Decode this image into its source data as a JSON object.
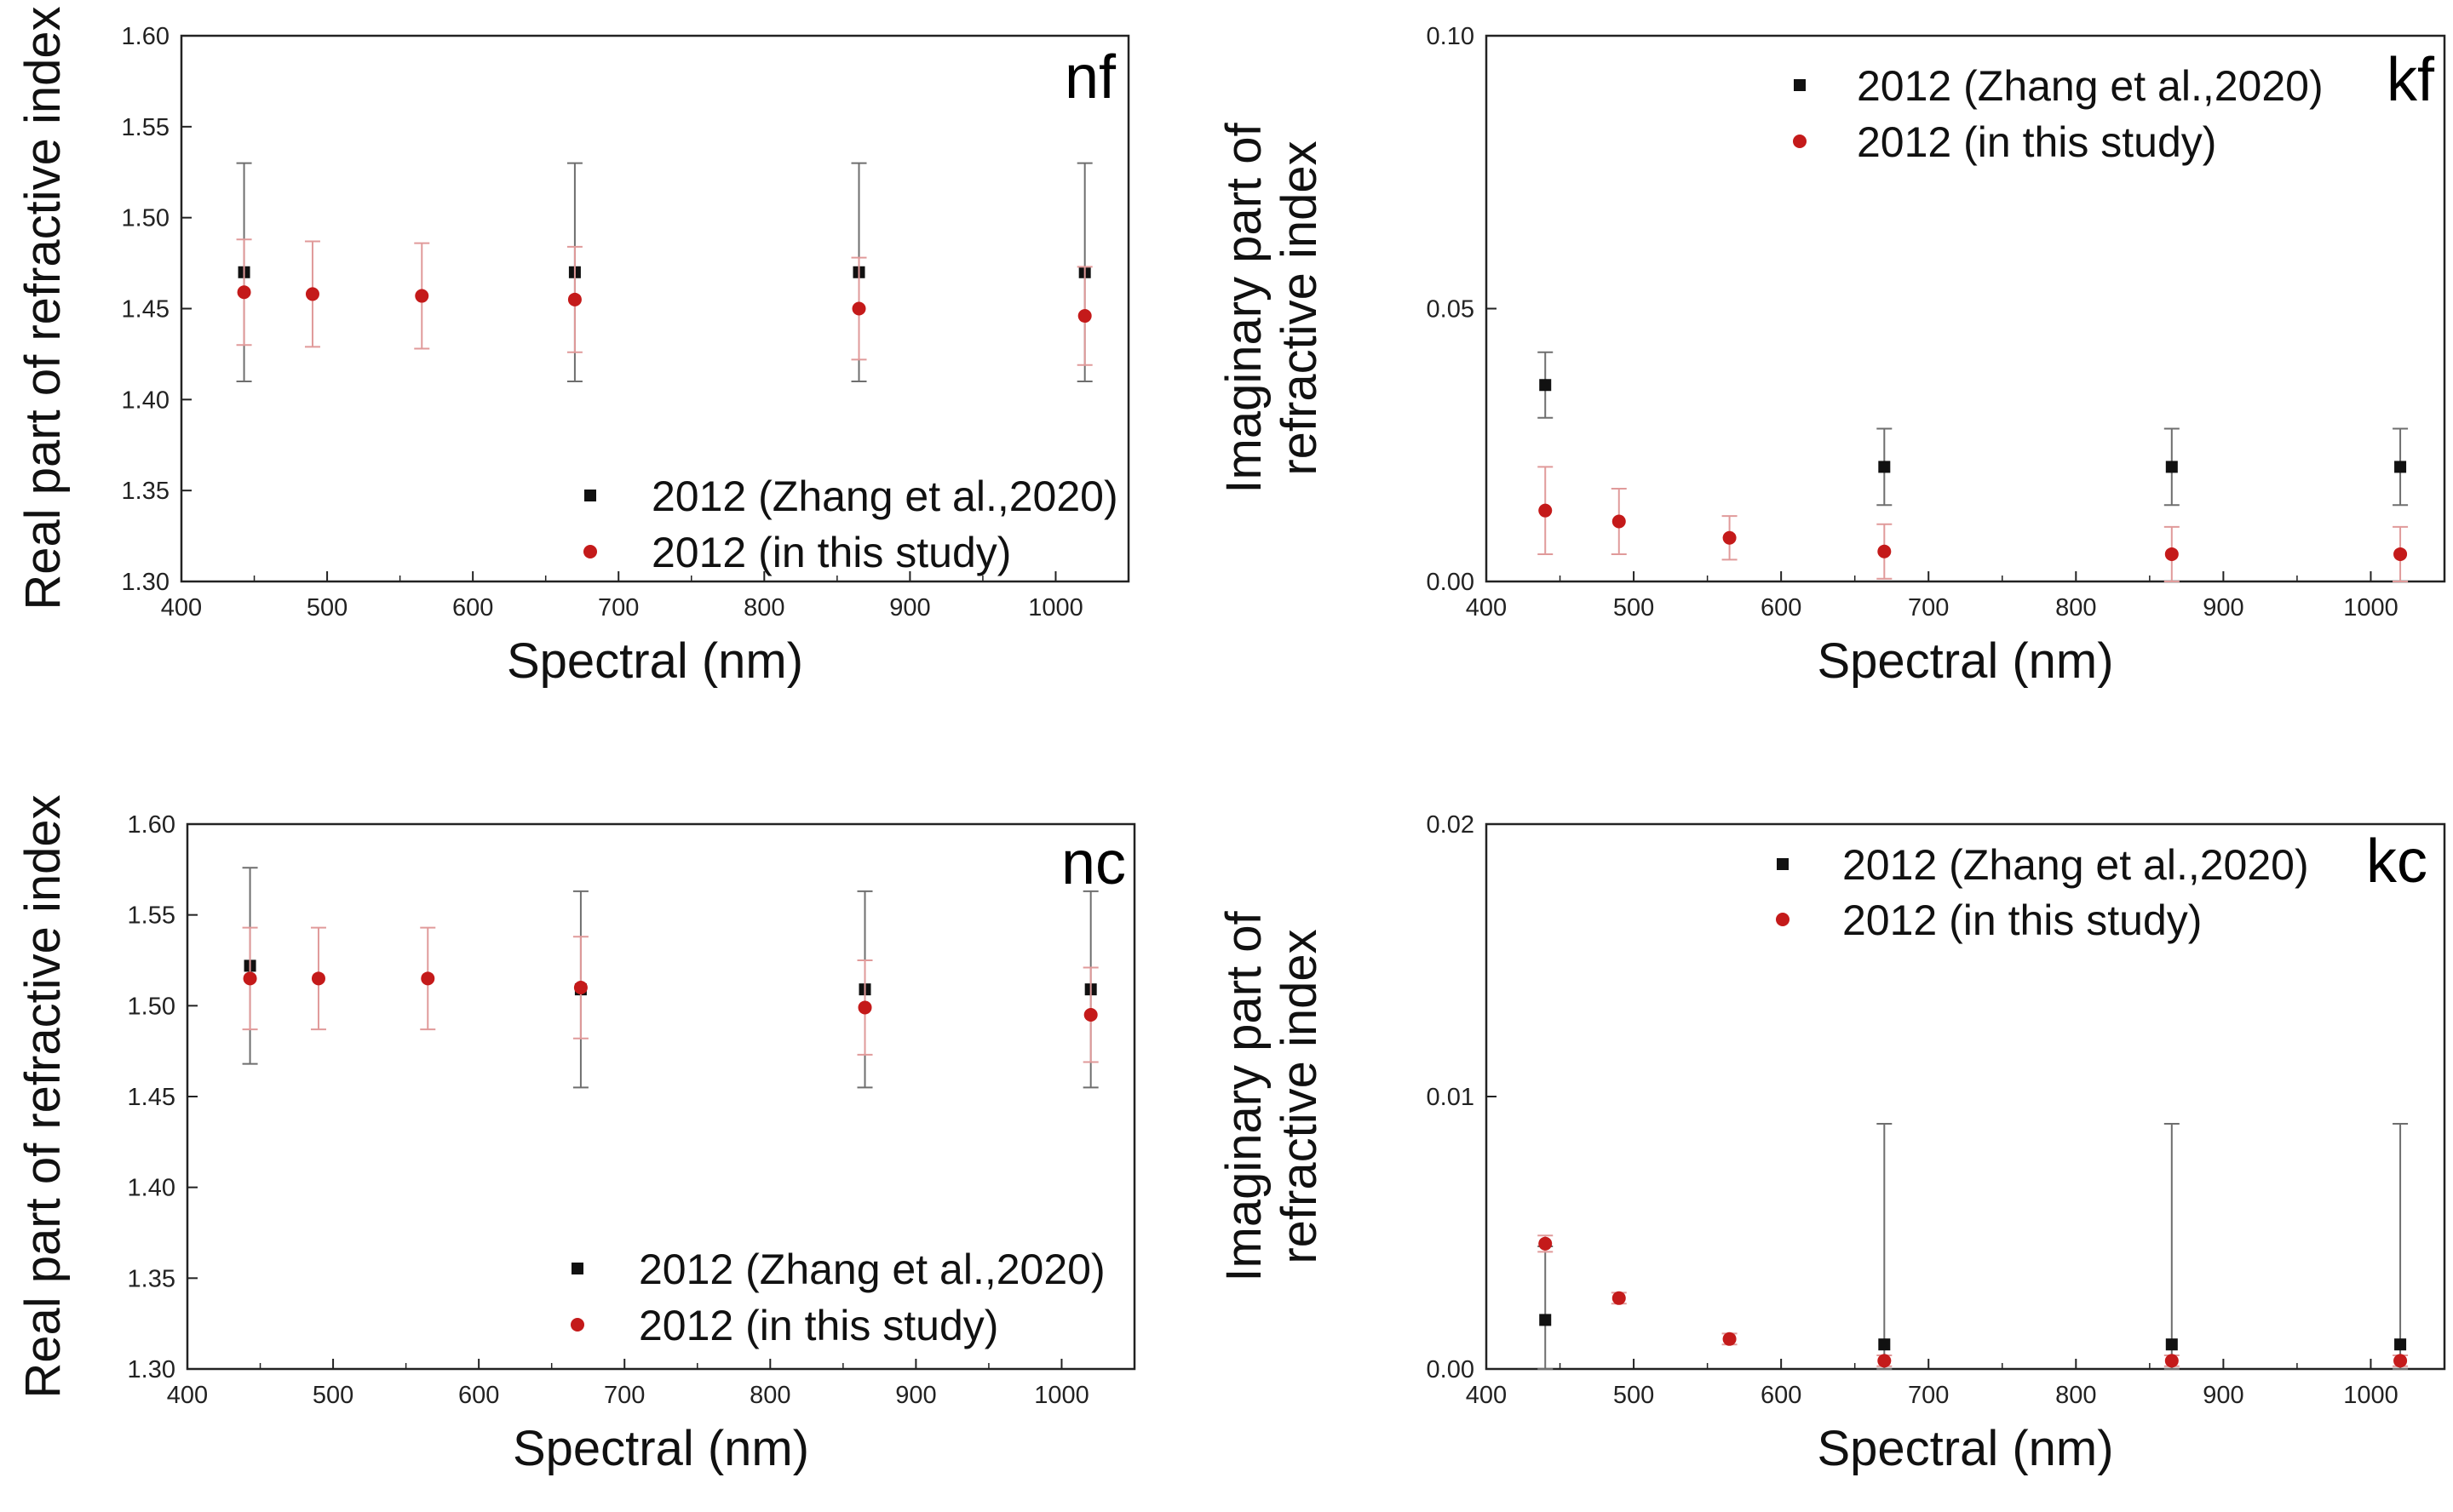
{
  "chart_data": [
    {
      "type": "scatter",
      "panel_label": "nf",
      "xlabel": "Spectral (nm)",
      "ylabel": "Real part of refractive index",
      "xlim": [
        400,
        1050
      ],
      "ylim": [
        1.3,
        1.6
      ],
      "xticks": [
        "400",
        "500",
        "600",
        "700",
        "800",
        "900",
        "1000"
      ],
      "yticks": [
        "1.30",
        "1.35",
        "1.40",
        "1.45",
        "1.50",
        "1.55",
        "1.60"
      ],
      "legend_position": "bottom-right",
      "series": [
        {
          "name": "2012 (Zhang et al.,2020)",
          "color": "#111111",
          "marker": "square",
          "x": [
            443,
            670,
            865,
            1020
          ],
          "y": [
            1.47,
            1.47,
            1.47,
            1.47
          ],
          "err": [
            0.06,
            0.06,
            0.06,
            0.06
          ]
        },
        {
          "name": "2012 (in this study)",
          "color": "#c41a1a",
          "marker": "circle",
          "x": [
            443,
            490,
            565,
            670,
            865,
            1020
          ],
          "y": [
            1.459,
            1.458,
            1.457,
            1.455,
            1.45,
            1.446
          ],
          "err": [
            0.029,
            0.029,
            0.029,
            0.029,
            0.028,
            0.027
          ]
        }
      ]
    },
    {
      "type": "scatter",
      "panel_label": "kf",
      "xlabel": "Spectral (nm)",
      "ylabel_line1": "Imaginary part of",
      "ylabel_line2": "refractive index",
      "xlim": [
        400,
        1050
      ],
      "ylim": [
        0.0,
        0.1
      ],
      "xticks": [
        "400",
        "500",
        "600",
        "700",
        "800",
        "900",
        "1000"
      ],
      "yticks": [
        "0.00",
        "0.05",
        "0.10"
      ],
      "legend_position": "top-right",
      "series": [
        {
          "name": "2012 (Zhang et al.,2020)",
          "color": "#111111",
          "marker": "square",
          "x": [
            440,
            670,
            865,
            1020
          ],
          "y": [
            0.036,
            0.021,
            0.021,
            0.021
          ],
          "err": [
            0.006,
            0.007,
            0.007,
            0.007
          ]
        },
        {
          "name": "2012 (in this study)",
          "color": "#c41a1a",
          "marker": "circle",
          "x": [
            440,
            490,
            565,
            670,
            865,
            1020
          ],
          "y": [
            0.013,
            0.011,
            0.008,
            0.0055,
            0.005,
            0.005
          ],
          "err": [
            0.008,
            0.006,
            0.004,
            0.005,
            0.005,
            0.005
          ]
        }
      ]
    },
    {
      "type": "scatter",
      "panel_label": "nc",
      "xlabel": "Spectral (nm)",
      "ylabel": "Real part of refractive index",
      "xlim": [
        400,
        1050
      ],
      "ylim": [
        1.3,
        1.6
      ],
      "xticks": [
        "400",
        "500",
        "600",
        "700",
        "800",
        "900",
        "1000"
      ],
      "yticks": [
        "1.30",
        "1.35",
        "1.40",
        "1.45",
        "1.50",
        "1.55",
        "1.60"
      ],
      "legend_position": "bottom-right",
      "series": [
        {
          "name": "2012 (Zhang et al.,2020)",
          "color": "#111111",
          "marker": "square",
          "x": [
            443,
            670,
            865,
            1020
          ],
          "y": [
            1.522,
            1.509,
            1.509,
            1.509
          ],
          "err": [
            0.054,
            0.054,
            0.054,
            0.054
          ]
        },
        {
          "name": "2012 (in this study)",
          "color": "#c41a1a",
          "marker": "circle",
          "x": [
            443,
            490,
            565,
            670,
            865,
            1020
          ],
          "y": [
            1.515,
            1.515,
            1.515,
            1.51,
            1.499,
            1.495
          ],
          "err": [
            0.028,
            0.028,
            0.028,
            0.028,
            0.026,
            0.026
          ]
        }
      ]
    },
    {
      "type": "scatter",
      "panel_label": "kc",
      "xlabel": "Spectral (nm)",
      "ylabel_line1": "Imaginary part of",
      "ylabel_line2": "refractive index",
      "xlim": [
        400,
        1050
      ],
      "ylim": [
        0.0,
        0.02
      ],
      "xticks": [
        "400",
        "500",
        "600",
        "700",
        "800",
        "900",
        "1000"
      ],
      "yticks": [
        "0.00",
        "0.01",
        "0.02"
      ],
      "legend_position": "top-right",
      "series": [
        {
          "name": "2012 (Zhang et al.,2020)",
          "color": "#111111",
          "marker": "square",
          "x": [
            440,
            670,
            865,
            1020
          ],
          "y": [
            0.0018,
            0.0009,
            0.0009,
            0.0009
          ],
          "err_low": [
            0.0018,
            0.0009,
            0.0009,
            0.0009
          ],
          "err_high": [
            0.0027,
            0.0081,
            0.0081,
            0.0081
          ]
        },
        {
          "name": "2012 (in this study)",
          "color": "#c41a1a",
          "marker": "circle",
          "x": [
            440,
            490,
            565,
            670,
            865,
            1020
          ],
          "y": [
            0.0046,
            0.0026,
            0.0011,
            0.0003,
            0.0003,
            0.0003
          ],
          "err_low": [
            0.0003,
            0.0002,
            0.0002,
            0.0002,
            0.0002,
            0.0002
          ],
          "err_high": [
            0.0003,
            0.0002,
            0.0002,
            0.0002,
            0.0002,
            0.0002
          ]
        }
      ]
    }
  ]
}
